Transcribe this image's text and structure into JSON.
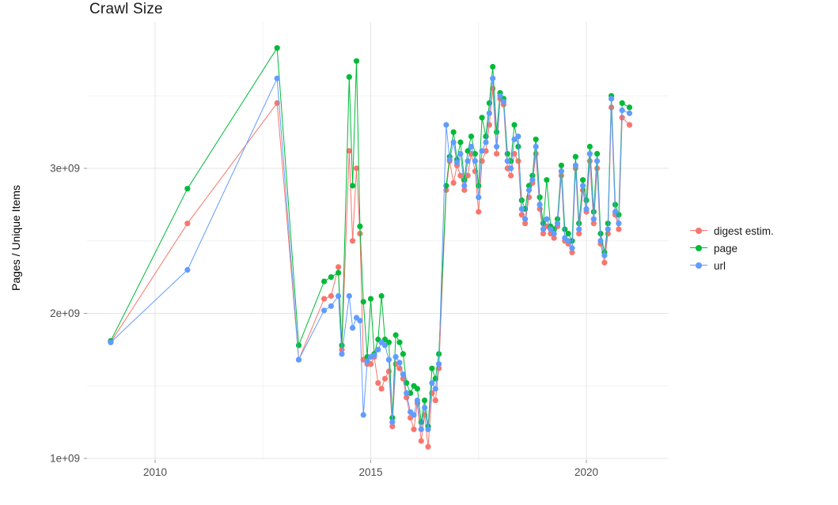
{
  "chart_data": {
    "type": "line",
    "title": "Crawl Size",
    "xlabel": "",
    "ylabel": "Pages / Unique Items",
    "y_unit": "1e9 (values below are in billions of pages / unique items)",
    "xlim": [
      2008.4,
      2021.9
    ],
    "ylim": [
      0.95,
      3.95
    ],
    "grid": "on",
    "legend_position": "right",
    "points": true,
    "x_ticks": [
      {
        "v": 2010,
        "label": "2010"
      },
      {
        "v": 2015,
        "label": "2015"
      },
      {
        "v": 2020,
        "label": "2020"
      }
    ],
    "y_ticks": [
      {
        "v": 1,
        "label": "1e+09"
      },
      {
        "v": 2,
        "label": "2e+09"
      },
      {
        "v": 3,
        "label": "3e+09"
      }
    ],
    "x_minor": [
      2012.5,
      2017.5
    ],
    "y_minor": [
      1.5,
      2.5,
      3.5
    ],
    "x": [
      2008.97,
      2010.75,
      2012.83,
      2013.33,
      2013.92,
      2014.08,
      2014.25,
      2014.33,
      2014.5,
      2014.58,
      2014.67,
      2014.75,
      2014.83,
      2014.92,
      2015.0,
      2015.08,
      2015.17,
      2015.25,
      2015.33,
      2015.42,
      2015.5,
      2015.58,
      2015.67,
      2015.75,
      2015.83,
      2015.92,
      2016.0,
      2016.08,
      2016.17,
      2016.25,
      2016.33,
      2016.42,
      2016.5,
      2016.58,
      2016.75,
      2016.83,
      2016.92,
      2017.0,
      2017.08,
      2017.17,
      2017.25,
      2017.33,
      2017.42,
      2017.5,
      2017.58,
      2017.67,
      2017.75,
      2017.83,
      2017.92,
      2018.0,
      2018.08,
      2018.17,
      2018.25,
      2018.33,
      2018.42,
      2018.5,
      2018.58,
      2018.67,
      2018.75,
      2018.83,
      2018.92,
      2019.0,
      2019.08,
      2019.17,
      2019.25,
      2019.33,
      2019.42,
      2019.5,
      2019.58,
      2019.67,
      2019.75,
      2019.83,
      2019.92,
      2020.0,
      2020.08,
      2020.17,
      2020.25,
      2020.33,
      2020.42,
      2020.5,
      2020.58,
      2020.67,
      2020.75,
      2020.83,
      2021.0
    ],
    "series": [
      {
        "name": "digest estim.",
        "color": "#F8766D",
        "values": [
          1.8,
          2.62,
          3.45,
          1.68,
          2.1,
          2.12,
          2.32,
          1.75,
          3.12,
          2.5,
          3.0,
          2.55,
          1.68,
          1.65,
          1.65,
          1.7,
          1.52,
          1.48,
          1.55,
          1.6,
          1.22,
          1.65,
          1.62,
          1.55,
          1.42,
          1.28,
          1.2,
          1.38,
          1.12,
          1.3,
          1.08,
          1.45,
          1.4,
          1.62,
          2.85,
          3.05,
          2.9,
          3.02,
          2.95,
          2.85,
          2.95,
          3.1,
          2.98,
          2.7,
          3.05,
          3.12,
          3.3,
          3.55,
          3.1,
          3.48,
          3.44,
          3.0,
          2.95,
          3.1,
          3.05,
          2.68,
          2.62,
          2.8,
          2.9,
          3.1,
          2.72,
          2.55,
          2.6,
          2.55,
          2.52,
          2.6,
          2.95,
          2.5,
          2.48,
          2.42,
          3.0,
          2.55,
          2.85,
          2.7,
          3.05,
          2.62,
          3.0,
          2.48,
          2.35,
          2.55,
          3.42,
          2.68,
          2.58,
          3.35,
          3.3
        ]
      },
      {
        "name": "page",
        "color": "#00BA38",
        "values": [
          1.81,
          2.86,
          3.83,
          1.78,
          2.22,
          2.25,
          2.28,
          1.78,
          3.63,
          2.88,
          3.74,
          2.6,
          2.08,
          1.7,
          2.1,
          1.72,
          1.82,
          2.12,
          1.82,
          1.8,
          1.28,
          1.85,
          1.8,
          1.72,
          1.52,
          1.45,
          1.5,
          1.48,
          1.25,
          1.4,
          1.22,
          1.62,
          1.55,
          1.72,
          2.88,
          3.08,
          3.25,
          3.06,
          3.18,
          2.92,
          3.12,
          3.22,
          3.1,
          2.88,
          3.35,
          3.22,
          3.45,
          3.7,
          3.25,
          3.52,
          3.48,
          3.1,
          3.05,
          3.3,
          3.15,
          2.78,
          2.72,
          2.88,
          2.95,
          3.2,
          2.8,
          2.62,
          2.92,
          2.6,
          2.58,
          2.65,
          3.02,
          2.58,
          2.55,
          2.5,
          3.08,
          2.62,
          2.92,
          2.78,
          3.15,
          2.7,
          3.1,
          2.55,
          2.42,
          2.62,
          3.5,
          2.75,
          2.68,
          3.45,
          3.42
        ]
      },
      {
        "name": "url",
        "color": "#619CFF",
        "values": [
          1.8,
          2.3,
          3.62,
          1.68,
          2.02,
          2.05,
          2.12,
          1.72,
          2.12,
          1.9,
          1.97,
          1.95,
          1.3,
          1.67,
          1.7,
          1.71,
          1.75,
          1.8,
          1.78,
          1.68,
          1.25,
          1.7,
          1.66,
          1.58,
          1.45,
          1.32,
          1.3,
          1.4,
          1.2,
          1.35,
          1.2,
          1.52,
          1.48,
          1.65,
          3.3,
          3.06,
          3.18,
          3.04,
          3.1,
          2.88,
          3.05,
          3.15,
          3.05,
          2.8,
          3.12,
          3.18,
          3.38,
          3.62,
          3.15,
          3.5,
          3.46,
          3.05,
          3.0,
          3.2,
          3.22,
          2.72,
          2.65,
          2.85,
          2.92,
          3.15,
          2.75,
          2.58,
          2.65,
          2.58,
          2.55,
          2.62,
          2.98,
          2.52,
          2.5,
          2.45,
          3.02,
          2.58,
          2.88,
          2.72,
          3.1,
          2.65,
          3.05,
          2.5,
          2.4,
          2.58,
          3.48,
          2.7,
          2.62,
          3.4,
          3.38
        ]
      }
    ],
    "style": {
      "grid_major_color": "#e4e4e4",
      "grid_minor_color": "#f2f2f2",
      "tick_label_color": "#4d4d4d",
      "background": "#ffffff"
    }
  }
}
